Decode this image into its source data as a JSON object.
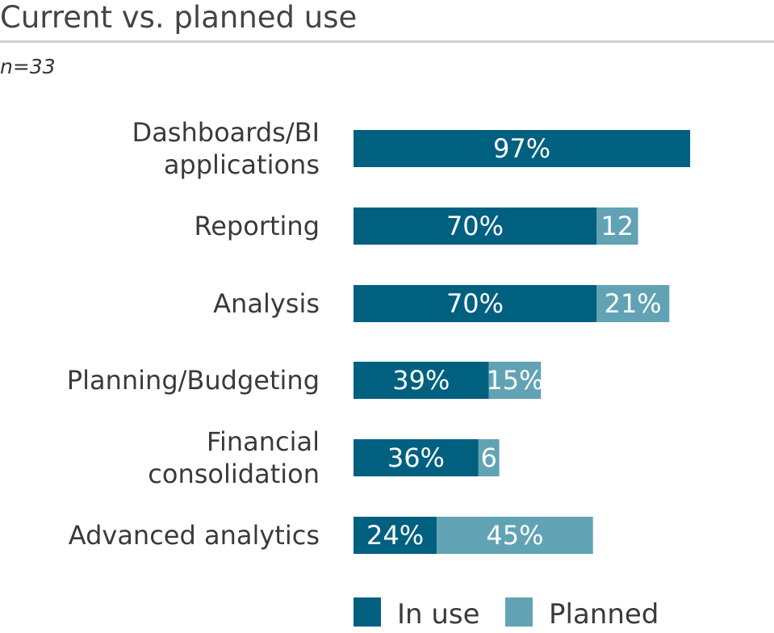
{
  "chart_data": {
    "type": "bar",
    "orientation": "horizontal",
    "stacked": true,
    "title": "Current vs. planned use",
    "subtitle": "n=33",
    "categories": [
      [
        "Dashboards/BI",
        "applications"
      ],
      [
        "Reporting"
      ],
      [
        "Analysis"
      ],
      [
        "Planning/Budgeting"
      ],
      [
        "Financial",
        "consolidation"
      ],
      [
        "Advanced analytics"
      ]
    ],
    "series": [
      {
        "name": "In use",
        "color": "#006080",
        "values": [
          97,
          70,
          70,
          39,
          36,
          24
        ],
        "labels": [
          "97%",
          "70%",
          "70%",
          "39%",
          "36%",
          "24%"
        ]
      },
      {
        "name": "Planned",
        "color": "#62a2b5",
        "values": [
          0,
          12,
          21,
          15,
          6,
          45
        ],
        "labels": [
          "",
          "12",
          "21%",
          "15%",
          "6",
          "45%"
        ]
      }
    ],
    "xlim": [
      0,
      100
    ],
    "grid": false,
    "legend": "bottom"
  }
}
